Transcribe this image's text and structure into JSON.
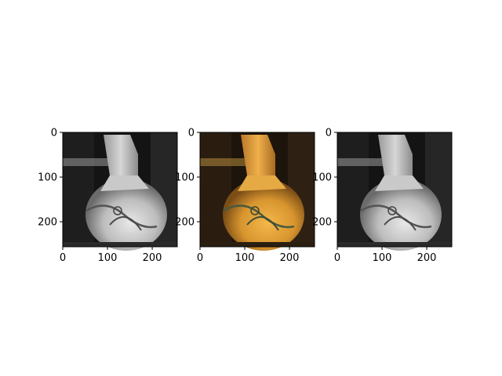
{
  "chart_data": [
    {
      "type": "image",
      "image": "vase-grayscale",
      "tone": "gray",
      "xlim": [
        0,
        256
      ],
      "ylim": [
        256,
        0
      ],
      "xticks": [
        0,
        100,
        200
      ],
      "yticks": [
        0,
        100,
        200
      ],
      "xtick_labels": [
        "0",
        "100",
        "200"
      ],
      "ytick_labels": [
        "0",
        "100",
        "200"
      ]
    },
    {
      "type": "image",
      "image": "vase-color",
      "tone": "color",
      "xlim": [
        0,
        256
      ],
      "ylim": [
        256,
        0
      ],
      "xticks": [
        0,
        100,
        200
      ],
      "yticks": [
        0,
        100,
        200
      ],
      "xtick_labels": [
        "0",
        "100",
        "200"
      ],
      "ytick_labels": [
        "0",
        "100",
        "200"
      ]
    },
    {
      "type": "image",
      "image": "vase-grayscale-reconstructed",
      "tone": "gray",
      "xlim": [
        0,
        256
      ],
      "ylim": [
        256,
        0
      ],
      "xticks": [
        0,
        100,
        200
      ],
      "yticks": [
        0,
        100,
        200
      ],
      "xtick_labels": [
        "0",
        "100",
        "200"
      ],
      "ytick_labels": [
        "0",
        "100",
        "200"
      ]
    }
  ],
  "colors": {
    "gray_dark": "#141414",
    "gray_light": "#e8e8e8",
    "vase_orange": "#e2a23c",
    "vase_dark": "#1d140b",
    "glaze_green": "#4a5a3e"
  }
}
